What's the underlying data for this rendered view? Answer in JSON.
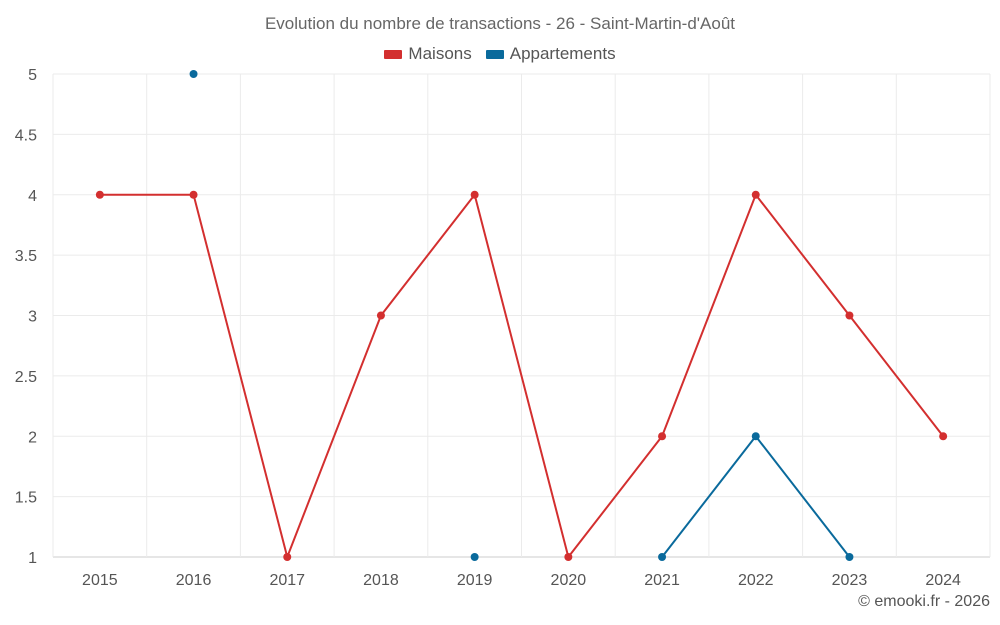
{
  "title": "Evolution du nombre de transactions - 26 - Saint-Martin-d'Août",
  "credit": "© emooki.fr - 2026",
  "chart_data": {
    "type": "line",
    "title": "Evolution du nombre de transactions - 26 - Saint-Martin-d'Août",
    "x": [
      "2015",
      "2016",
      "2017",
      "2018",
      "2019",
      "2020",
      "2021",
      "2022",
      "2023",
      "2024"
    ],
    "ylim": [
      1,
      5
    ],
    "yticks": [
      "1",
      "1.5",
      "2",
      "2.5",
      "3",
      "3.5",
      "4",
      "4.5",
      "5"
    ],
    "grid": true,
    "legend_position": "top",
    "series": [
      {
        "name": "Maisons",
        "color": "#d32f2f",
        "values": [
          4,
          4,
          1,
          3,
          4,
          1,
          2,
          4,
          3,
          2
        ]
      },
      {
        "name": "Appartements",
        "color": "#0a6a9c",
        "values": [
          null,
          5,
          null,
          null,
          1,
          null,
          1,
          2,
          1,
          null
        ]
      }
    ]
  }
}
